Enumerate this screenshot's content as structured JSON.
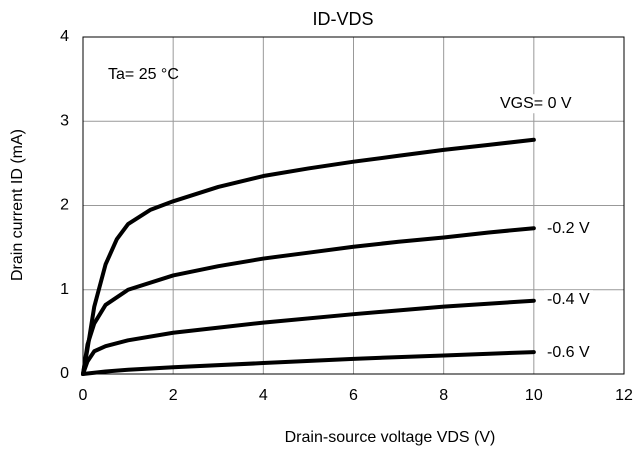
{
  "chart_data": {
    "type": "line",
    "title": "ID-VDS",
    "x_label": "Drain-source voltage VDS (V)",
    "y_label": "Drain current ID (mA)",
    "annotation": "Ta= 25 °C",
    "xlim": [
      0,
      12
    ],
    "xticks": [
      0,
      2,
      4,
      6,
      8,
      10,
      12
    ],
    "ylim": [
      0,
      4
    ],
    "yticks": [
      0,
      1,
      2,
      3,
      4
    ],
    "grid": true,
    "series": [
      {
        "name": "VGS= 0 V",
        "color": "#000000",
        "x": [
          0,
          0.1,
          0.25,
          0.5,
          0.75,
          1,
          1.5,
          2,
          3,
          4,
          5,
          6,
          7,
          8,
          9,
          10
        ],
        "values": [
          0,
          0.3,
          0.8,
          1.3,
          1.6,
          1.78,
          1.95,
          2.05,
          2.22,
          2.35,
          2.44,
          2.52,
          2.59,
          2.66,
          2.72,
          2.78
        ]
      },
      {
        "name": "-0.2 V",
        "color": "#000000",
        "x": [
          0,
          0.1,
          0.25,
          0.5,
          1,
          2,
          3,
          4,
          5,
          6,
          7,
          8,
          9,
          10
        ],
        "values": [
          0,
          0.35,
          0.6,
          0.82,
          1.0,
          1.17,
          1.28,
          1.37,
          1.44,
          1.51,
          1.57,
          1.62,
          1.68,
          1.73
        ]
      },
      {
        "name": "-0.4 V",
        "color": "#000000",
        "x": [
          0,
          0.1,
          0.25,
          0.5,
          1,
          2,
          4,
          6,
          8,
          10
        ],
        "values": [
          0,
          0.15,
          0.27,
          0.33,
          0.4,
          0.49,
          0.61,
          0.71,
          0.8,
          0.87
        ]
      },
      {
        "name": "-0.6 V",
        "color": "#000000",
        "x": [
          0,
          0.5,
          1,
          2,
          4,
          6,
          8,
          10
        ],
        "values": [
          0,
          0.03,
          0.05,
          0.08,
          0.13,
          0.18,
          0.22,
          0.26
        ]
      }
    ]
  }
}
